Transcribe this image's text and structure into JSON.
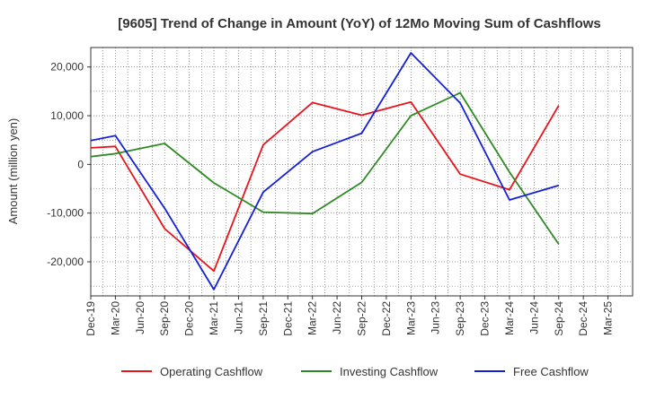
{
  "chart_data": {
    "type": "line",
    "title": "[9605]  Trend of Change in Amount (YoY) of 12Mo Moving Sum of Cashflows",
    "xlabel": "",
    "ylabel": "Amount (million yen)",
    "ylim": [
      -27000,
      24000
    ],
    "yticks": [
      -20000,
      -10000,
      0,
      10000,
      20000
    ],
    "ytick_labels": [
      "-20,000",
      "-10,000",
      "0",
      "10,000",
      "20,000"
    ],
    "x_tick_labels": [
      "Dec-19",
      "Mar-20",
      "Jun-20",
      "Sep-20",
      "Dec-20",
      "Mar-21",
      "Jun-21",
      "Sep-21",
      "Dec-21",
      "Mar-22",
      "Jun-22",
      "Sep-22",
      "Dec-22",
      "Mar-23",
      "Jun-23",
      "Sep-23",
      "Dec-23",
      "Mar-24",
      "Jun-24",
      "Sep-24",
      "Dec-24",
      "Mar-25"
    ],
    "grid": true,
    "legend_position": "bottom",
    "series": [
      {
        "name": "Operating Cashflow",
        "color": "#e8141b",
        "points": [
          [
            0,
            3400
          ],
          [
            1,
            3700
          ],
          [
            3,
            -13200
          ],
          [
            5,
            -21900
          ],
          [
            7,
            4000
          ],
          [
            9,
            12700
          ],
          [
            11,
            10100
          ],
          [
            13,
            12800
          ],
          [
            15,
            -2000
          ],
          [
            17,
            -5200
          ],
          [
            19,
            12100
          ]
        ]
      },
      {
        "name": "Investing Cashflow",
        "color": "#2e8b23",
        "points": [
          [
            0,
            1600
          ],
          [
            1,
            2200
          ],
          [
            3,
            4300
          ],
          [
            5,
            -3800
          ],
          [
            7,
            -9800
          ],
          [
            9,
            -10100
          ],
          [
            11,
            -3700
          ],
          [
            13,
            10000
          ],
          [
            15,
            14700
          ],
          [
            17,
            -1600
          ],
          [
            19,
            -16400
          ]
        ]
      },
      {
        "name": "Free Cashflow",
        "color": "#1420d8",
        "points": [
          [
            0,
            4900
          ],
          [
            1,
            5900
          ],
          [
            3,
            -9000
          ],
          [
            5,
            -25700
          ],
          [
            7,
            -5700
          ],
          [
            9,
            2600
          ],
          [
            11,
            6400
          ],
          [
            13,
            22900
          ],
          [
            15,
            12600
          ],
          [
            17,
            -7300
          ],
          [
            19,
            -4300
          ]
        ]
      }
    ]
  }
}
